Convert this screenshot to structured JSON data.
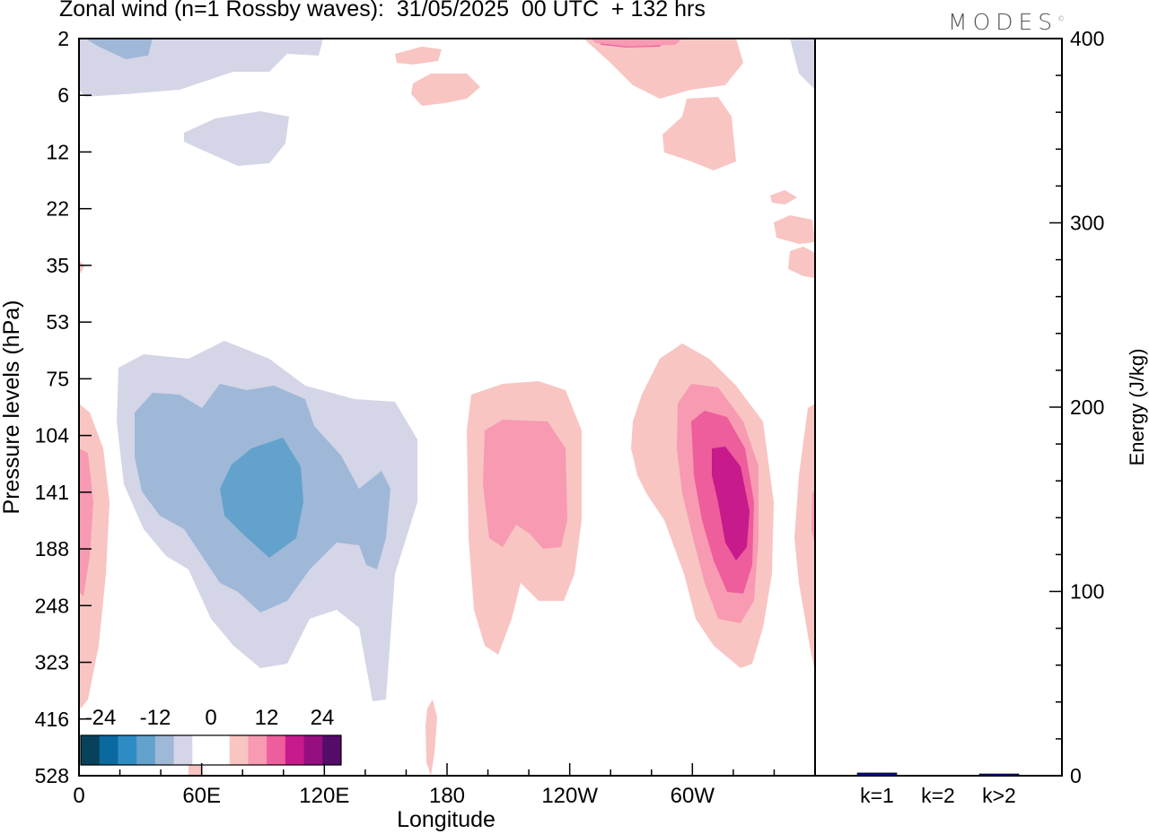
{
  "title": "Zonal wind (n=1 Rossby waves):  31/05/2025  00 UTC  + 132 hrs",
  "logo": "MODES",
  "chart_data": [
    {
      "type": "heatmap",
      "xlabel": "Longitude",
      "ylabel": "Pressure levels (hPa)",
      "x_ticks": [
        "0",
        "60E",
        "120E",
        "180",
        "120W",
        "60W"
      ],
      "x_range_deg": [
        0,
        360
      ],
      "y_ticks": [
        "2",
        "6",
        "12",
        "22",
        "35",
        "53",
        "75",
        "104",
        "141",
        "188",
        "248",
        "323",
        "416",
        "528"
      ],
      "y_axis": "pressure levels, top = 2 hPa, bottom = 528 hPa",
      "colorbar": {
        "labels": [
          "-24",
          "-12",
          "0",
          "12",
          "24"
        ],
        "colors": [
          "#08415c",
          "#0a6aa0",
          "#2e8bc4",
          "#63a2cc",
          "#9fb8d8",
          "#d5d5e8",
          "#ffffff",
          "#ffffff",
          "#f8c5c2",
          "#f79ab2",
          "#ee5d9c",
          "#c71a8b",
          "#950f80",
          "#540b6a"
        ]
      },
      "features": [
        {
          "sign": "negative",
          "center_lon": 92,
          "center_level": "141",
          "min_value": -12
        },
        {
          "sign": "positive",
          "center_lon": 210,
          "center_level": "141",
          "max_value": 9
        },
        {
          "sign": "positive",
          "center_lon": 322,
          "center_level": "141",
          "max_value": 15
        },
        {
          "sign": "negative",
          "center_lon": 40,
          "center_level": "6",
          "min_value": -6
        },
        {
          "sign": "positive",
          "center_lon": 300,
          "center_level": "6",
          "max_value": 9
        }
      ]
    },
    {
      "type": "bar",
      "ylabel": "Energy (J/kg)",
      "ylim": [
        0,
        400
      ],
      "y_ticks": [
        "0",
        "100",
        "200",
        "300",
        "400"
      ],
      "categories": [
        "k=1",
        "k=2",
        "k>2"
      ],
      "values": [
        1.5,
        0.0,
        0.5
      ],
      "bar_color": "#0a0a80"
    }
  ]
}
